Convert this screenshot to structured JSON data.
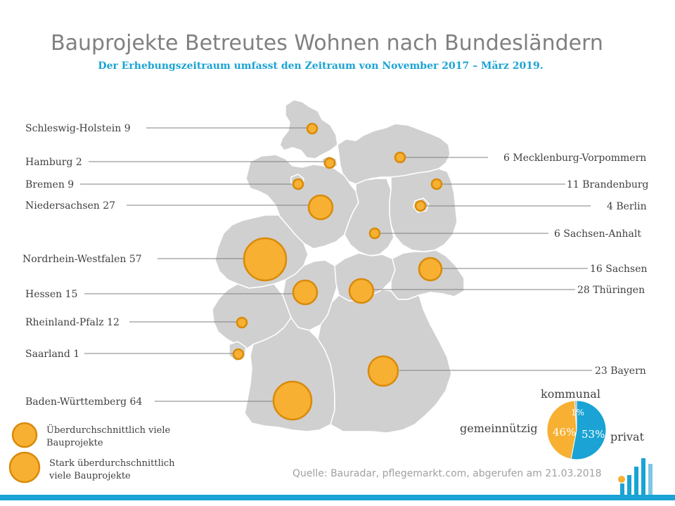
{
  "title": "Bauprojekte Betreutes Wohnen nach Bundesländern",
  "subtitle": "Der Erhebungszeitraum umfasst den Zeitraum von November 2017 – März 2019.",
  "states": [
    {
      "name": "Schleswig-Holstein",
      "value": 9,
      "label": "Schleswig-Holstein 9",
      "tier": "small"
    },
    {
      "name": "Hamburg",
      "value": 2,
      "label": "Hamburg 2",
      "tier": "small"
    },
    {
      "name": "Bremen",
      "value": 9,
      "label": "Bremen 9",
      "tier": "small"
    },
    {
      "name": "Niedersachsen",
      "value": 27,
      "label": "Niedersachsen 27",
      "tier": "large"
    },
    {
      "name": "Nordrhein-Westfalen",
      "value": 57,
      "label": "Nordrhein-Westfalen 57",
      "tier": "large"
    },
    {
      "name": "Hessen",
      "value": 15,
      "label": "Hessen 15",
      "tier": "large"
    },
    {
      "name": "Rheinland-Pfalz",
      "value": 12,
      "label": "Rheinland-Pfalz 12",
      "tier": "small"
    },
    {
      "name": "Saarland",
      "value": 1,
      "label": "Saarland 1",
      "tier": "small"
    },
    {
      "name": "Baden-Württemberg",
      "value": 64,
      "label": "Baden-Württemberg 64",
      "tier": "large"
    },
    {
      "name": "Mecklenburg-Vorpommern",
      "value": 6,
      "label": "6 Mecklenburg-Vorpommern",
      "tier": "small"
    },
    {
      "name": "Brandenburg",
      "value": 11,
      "label": "11 Brandenburg",
      "tier": "small"
    },
    {
      "name": "Berlin",
      "value": 4,
      "label": "4 Berlin",
      "tier": "small"
    },
    {
      "name": "Sachsen-Anhalt",
      "value": 6,
      "label": "6 Sachsen-Anhalt",
      "tier": "small"
    },
    {
      "name": "Sachsen",
      "value": 16,
      "label": "16 Sachsen",
      "tier": "large"
    },
    {
      "name": "Thüringen",
      "value": 28,
      "label": "28 Thüringen",
      "tier": "large"
    },
    {
      "name": "Bayern",
      "value": 23,
      "label": "23 Bayern",
      "tier": "large"
    }
  ],
  "legend": {
    "small_line1": "Überdurchschnittlich viele",
    "small_line2": "Bauprojekte",
    "large_line1": "Stark überdurchschnittlich",
    "large_line2": "viele Bauprojekte"
  },
  "pie": {
    "slices": [
      {
        "name": "privat",
        "value": 53,
        "label": "53%",
        "color": "#1aa3d4"
      },
      {
        "name": "gemeinnützig",
        "value": 46,
        "label": "46%",
        "color": "#f7b032"
      },
      {
        "name": "kommunal",
        "value": 1,
        "label": "1%",
        "color": "#a6a6a6"
      }
    ],
    "label_kommunal": "kommunal",
    "label_gemeinnuetzig": "gemeinnützig",
    "label_privat": "privat"
  },
  "source": "Quelle: Bauradar, pflegemarkt.com, abgerufen am 21.03.2018",
  "colors": {
    "marker_fill": "#f7b032",
    "marker_stroke": "#d98a0a",
    "map_fill": "#d0d0d0",
    "accent": "#1aa3d4"
  }
}
